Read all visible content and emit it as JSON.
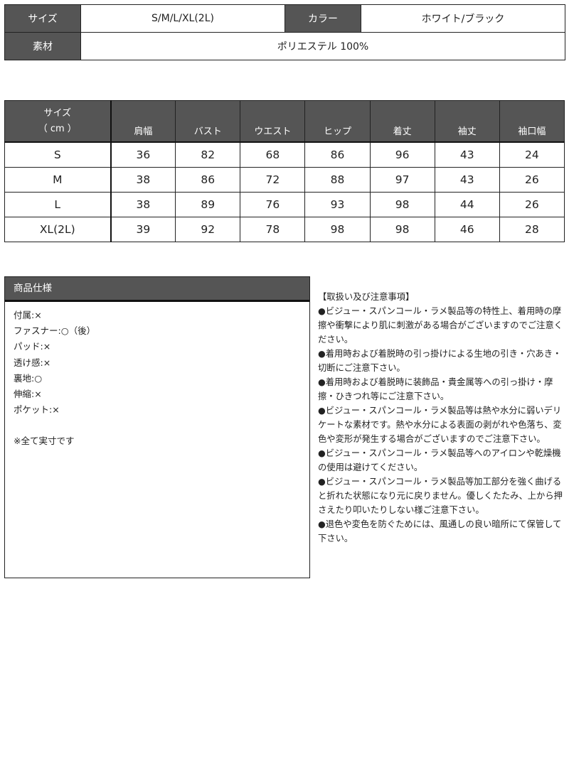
{
  "info": {
    "size_label": "サイズ",
    "size_value": "S/M/L/XL(2L)",
    "color_label": "カラー",
    "color_value": "ホワイト/ブラック",
    "material_label": "素材",
    "material_value": "ポリエステル 100%"
  },
  "sizes": {
    "header_line1": "サイズ",
    "header_line2": "（ cm ）",
    "columns": [
      "肩幅",
      "バスト",
      "ウエスト",
      "ヒップ",
      "着丈",
      "袖丈",
      "袖口幅"
    ],
    "rows": [
      {
        "size": "S",
        "values": [
          "36",
          "82",
          "68",
          "86",
          "96",
          "43",
          "24"
        ]
      },
      {
        "size": "M",
        "values": [
          "38",
          "86",
          "72",
          "88",
          "97",
          "43",
          "26"
        ]
      },
      {
        "size": "L",
        "values": [
          "38",
          "89",
          "76",
          "93",
          "98",
          "44",
          "26"
        ]
      },
      {
        "size": "XL(2L)",
        "values": [
          "39",
          "92",
          "78",
          "98",
          "98",
          "46",
          "28"
        ]
      }
    ]
  },
  "spec": {
    "title": "商品仕様",
    "items": [
      "付属:×",
      "ファスナー:○（後）",
      "パッド:×",
      "透け感:×",
      "裏地:○",
      "伸縮:×",
      "ポケット:×"
    ],
    "note": "※全て実寸です"
  },
  "notes": {
    "title": "【取扱い及び注意事項】",
    "items": [
      "●ビジュー・スパンコール・ラメ製品等の特性上、着用時の摩擦や衝撃により肌に刺激がある場合がございますのでご注意ください。",
      "●着用時および着脱時の引っ掛けによる生地の引き・穴あき・切断にご注意下さい。",
      "●着用時および着脱時に装飾品・貴金属等への引っ掛け・摩擦・ひきつれ等にご注意下さい。",
      "●ビジュー・スパンコール・ラメ製品等は熱や水分に弱いデリケートな素材です。熱や水分による表面の剥がれや色落ち、変色や変形が発生する場合がございますのでご注意下さい。",
      "●ビジュー・スパンコール・ラメ製品等へのアイロンや乾燥機の使用は避けてください。",
      "●ビジュー・スパンコール・ラメ製品等加工部分を強く曲げると折れた状態になり元に戻りません。優しくたたみ、上から押さえたり叩いたりしない様ご注意下さい。",
      "●退色や変色を防ぐためには、風通しの良い暗所にて保管して下さい。"
    ]
  }
}
